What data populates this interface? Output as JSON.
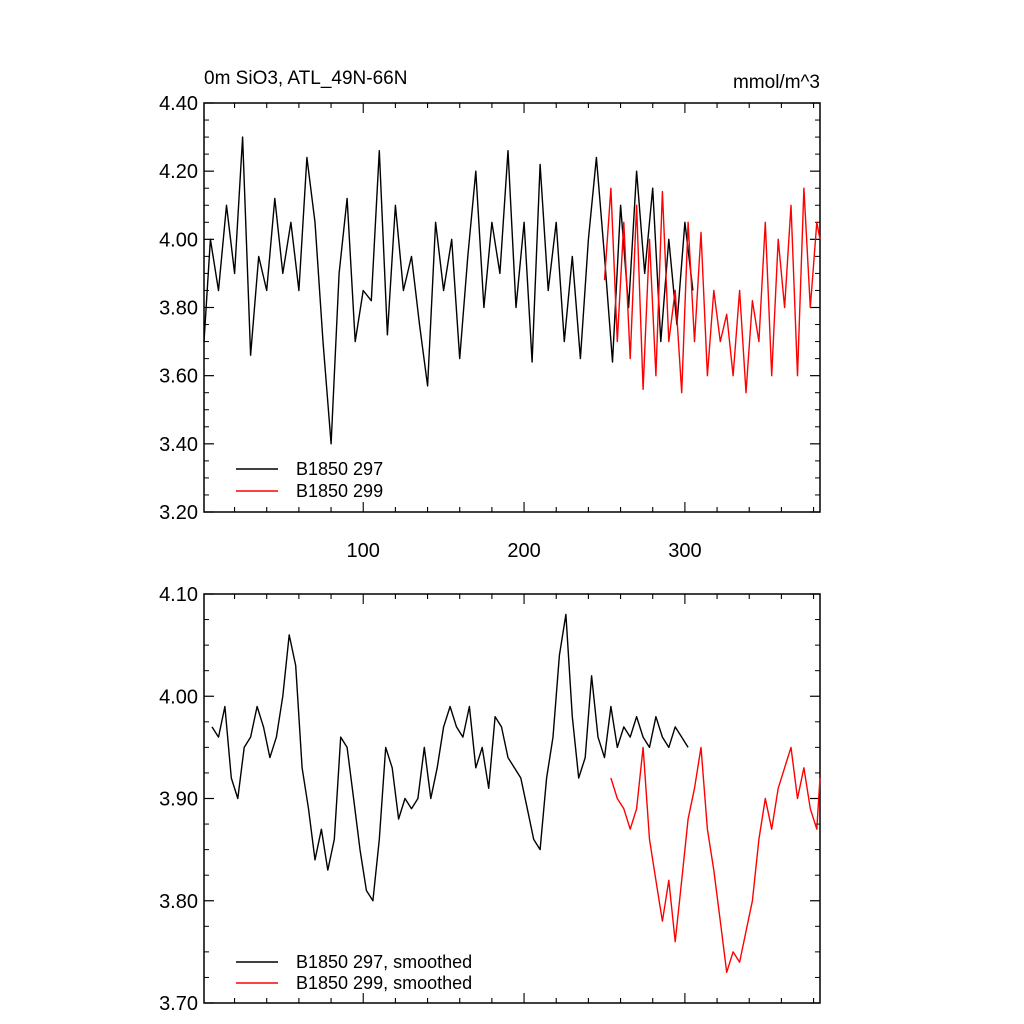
{
  "chart_data": [
    {
      "type": "line",
      "title": "0m SiO3, ATL_49N-66N",
      "units": "mmol/m^3",
      "xlim": [
        1,
        384
      ],
      "ylim": [
        3.2,
        4.4
      ],
      "xticks": [
        100,
        200,
        300
      ],
      "xtick_labels": [
        "100",
        "200",
        "300"
      ],
      "yticks": [
        3.2,
        3.4,
        3.6,
        3.8,
        4.0,
        4.2,
        4.4
      ],
      "ytick_labels": [
        "3.20",
        "3.40",
        "3.60",
        "3.80",
        "4.00",
        "4.20",
        "4.40"
      ],
      "legend": [
        "B1850 297",
        "B1850 299"
      ],
      "legend_position": "bottom-left",
      "series": [
        {
          "name": "B1850 297",
          "color": "#000000",
          "x": [
            1,
            5,
            10,
            15,
            20,
            25,
            30,
            35,
            40,
            45,
            50,
            55,
            60,
            65,
            70,
            75,
            80,
            85,
            90,
            95,
            100,
            105,
            110,
            115,
            120,
            125,
            130,
            135,
            140,
            145,
            150,
            155,
            160,
            165,
            170,
            175,
            180,
            185,
            190,
            195,
            200,
            205,
            210,
            215,
            220,
            225,
            230,
            235,
            240,
            245,
            250,
            255,
            260,
            265,
            270,
            275,
            280,
            285,
            290,
            295,
            300,
            305
          ],
          "values": [
            3.7,
            4.0,
            3.85,
            4.1,
            3.9,
            4.3,
            3.66,
            3.95,
            3.85,
            4.12,
            3.9,
            4.05,
            3.85,
            4.24,
            4.05,
            3.7,
            3.4,
            3.9,
            4.12,
            3.7,
            3.85,
            3.82,
            4.26,
            3.72,
            4.1,
            3.85,
            3.95,
            3.75,
            3.57,
            4.05,
            3.85,
            4.0,
            3.65,
            3.95,
            4.2,
            3.8,
            4.05,
            3.9,
            4.26,
            3.8,
            4.05,
            3.64,
            4.22,
            3.85,
            4.05,
            3.7,
            3.95,
            3.65,
            4.0,
            4.24,
            3.95,
            3.64,
            4.1,
            3.8,
            4.2,
            3.9,
            4.15,
            3.7,
            4.0,
            3.75,
            4.05,
            3.85
          ]
        },
        {
          "name": "B1850 299",
          "color": "#ff0000",
          "x": [
            250,
            254,
            258,
            262,
            266,
            270,
            274,
            278,
            282,
            286,
            290,
            294,
            298,
            302,
            306,
            310,
            314,
            318,
            322,
            326,
            330,
            334,
            338,
            342,
            346,
            350,
            354,
            358,
            362,
            366,
            370,
            374,
            378,
            382,
            384
          ],
          "values": [
            3.88,
            4.15,
            3.7,
            4.05,
            3.65,
            4.1,
            3.56,
            4.0,
            3.6,
            4.14,
            3.7,
            3.85,
            3.55,
            4.05,
            3.7,
            4.02,
            3.6,
            3.85,
            3.7,
            3.78,
            3.6,
            3.85,
            3.55,
            3.82,
            3.7,
            4.05,
            3.6,
            4.0,
            3.8,
            4.1,
            3.6,
            4.15,
            3.8,
            4.05,
            4.0
          ]
        }
      ]
    },
    {
      "type": "line",
      "xlim": [
        1,
        384
      ],
      "ylim": [
        3.7,
        4.1
      ],
      "yticks": [
        3.7,
        3.8,
        3.9,
        4.0,
        4.1
      ],
      "ytick_labels": [
        "3.70",
        "3.80",
        "3.90",
        "4.00",
        "4.10"
      ],
      "legend": [
        "B1850 297, smoothed",
        "B1850 299, smoothed"
      ],
      "legend_position": "bottom-left",
      "series": [
        {
          "name": "B1850 297, smoothed",
          "color": "#000000",
          "x": [
            6,
            10,
            14,
            18,
            22,
            26,
            30,
            34,
            38,
            42,
            46,
            50,
            54,
            58,
            62,
            66,
            70,
            74,
            78,
            82,
            86,
            90,
            94,
            98,
            102,
            106,
            110,
            114,
            118,
            122,
            126,
            130,
            134,
            138,
            142,
            146,
            150,
            154,
            158,
            162,
            166,
            170,
            174,
            178,
            182,
            186,
            190,
            194,
            198,
            202,
            206,
            210,
            214,
            218,
            222,
            226,
            230,
            234,
            238,
            242,
            246,
            250,
            254,
            258,
            262,
            266,
            270,
            274,
            278,
            282,
            286,
            290,
            294,
            298,
            302
          ],
          "values": [
            3.97,
            3.96,
            3.99,
            3.92,
            3.9,
            3.95,
            3.96,
            3.99,
            3.97,
            3.94,
            3.96,
            4.0,
            4.06,
            4.03,
            3.93,
            3.89,
            3.84,
            3.87,
            3.83,
            3.86,
            3.96,
            3.95,
            3.9,
            3.85,
            3.81,
            3.8,
            3.86,
            3.95,
            3.93,
            3.88,
            3.9,
            3.89,
            3.9,
            3.95,
            3.9,
            3.93,
            3.97,
            3.99,
            3.97,
            3.96,
            3.99,
            3.93,
            3.95,
            3.91,
            3.98,
            3.97,
            3.94,
            3.93,
            3.92,
            3.89,
            3.86,
            3.85,
            3.92,
            3.96,
            4.04,
            4.08,
            3.98,
            3.92,
            3.94,
            4.02,
            3.96,
            3.94,
            3.99,
            3.95,
            3.97,
            3.96,
            3.98,
            3.96,
            3.95,
            3.98,
            3.96,
            3.95,
            3.97,
            3.96,
            3.95
          ]
        },
        {
          "name": "B1850 299, smoothed",
          "color": "#ff0000",
          "x": [
            254,
            258,
            262,
            266,
            270,
            274,
            278,
            282,
            286,
            290,
            294,
            298,
            302,
            306,
            310,
            314,
            318,
            322,
            326,
            330,
            334,
            338,
            342,
            346,
            350,
            354,
            358,
            362,
            366,
            370,
            374,
            378,
            382,
            384
          ],
          "values": [
            3.92,
            3.9,
            3.89,
            3.87,
            3.89,
            3.95,
            3.86,
            3.82,
            3.78,
            3.82,
            3.76,
            3.82,
            3.88,
            3.91,
            3.95,
            3.87,
            3.83,
            3.78,
            3.73,
            3.75,
            3.74,
            3.77,
            3.8,
            3.86,
            3.9,
            3.87,
            3.91,
            3.93,
            3.95,
            3.9,
            3.93,
            3.89,
            3.87,
            3.92
          ]
        }
      ]
    }
  ]
}
